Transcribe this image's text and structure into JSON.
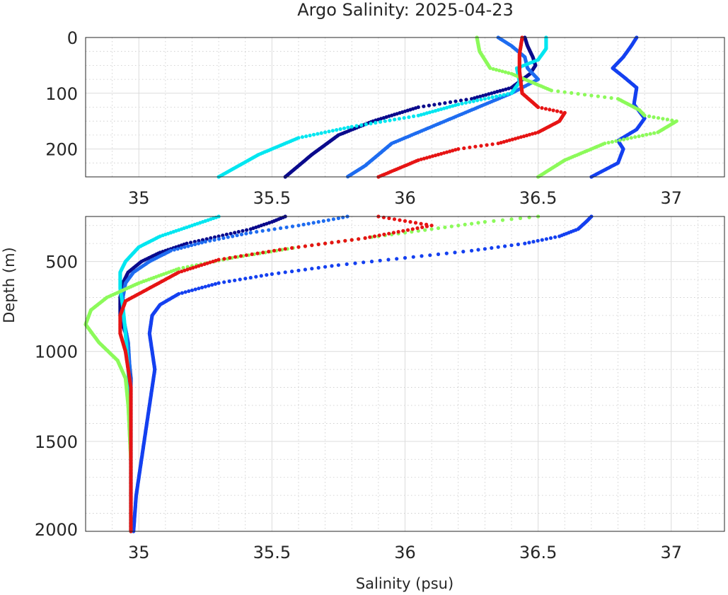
{
  "chart_data": {
    "type": "scatter",
    "title": "Argo Salinity: 2025-04-23",
    "xlabel": "Salinity (psu)",
    "ylabel": "Depth (m)",
    "xlim": [
      34.8,
      37.2
    ],
    "xticks": [
      35,
      35.5,
      36,
      36.5,
      37
    ],
    "xtick_labels": [
      "35",
      "35.5",
      "36",
      "36.5",
      "37"
    ],
    "y_reversed": true,
    "grid": true,
    "panels": [
      {
        "name": "upper",
        "ylim": [
          0,
          250
        ],
        "yticks": [
          0,
          100,
          200
        ],
        "ytick_labels": [
          "0",
          "100",
          "200"
        ],
        "yminor": [
          25,
          50,
          75,
          125,
          150,
          175,
          225
        ]
      },
      {
        "name": "lower",
        "ylim": [
          250,
          2000
        ],
        "yticks": [
          500,
          1000,
          1500,
          2000
        ],
        "ytick_labels": [
          "500",
          "1000",
          "1500",
          "2000"
        ],
        "yminor": [
          300,
          400,
          600,
          700,
          800,
          900,
          1100,
          1200,
          1300,
          1400,
          1600,
          1700,
          1800,
          1900
        ]
      }
    ],
    "series": [
      {
        "name": "navy",
        "color": "#0a0a8c",
        "points": [
          [
            36.45,
            0
          ],
          [
            36.46,
            15
          ],
          [
            36.48,
            35
          ],
          [
            36.49,
            50
          ],
          [
            36.47,
            65
          ],
          [
            36.4,
            90
          ],
          [
            36.25,
            110
          ],
          [
            36.05,
            125
          ],
          [
            35.88,
            150
          ],
          [
            35.75,
            175
          ],
          [
            35.65,
            210
          ],
          [
            35.55,
            250
          ],
          [
            35.5,
            280
          ],
          [
            35.42,
            320
          ],
          [
            35.3,
            360
          ],
          [
            35.18,
            400
          ],
          [
            35.08,
            450
          ],
          [
            35.01,
            500
          ],
          [
            34.96,
            560
          ],
          [
            34.94,
            620
          ],
          [
            34.93,
            700
          ],
          [
            34.93,
            800
          ],
          [
            34.95,
            900
          ],
          [
            34.96,
            1000
          ],
          [
            34.97,
            1150
          ],
          [
            34.97,
            1400
          ],
          [
            34.97,
            1700
          ],
          [
            34.97,
            2000
          ]
        ]
      },
      {
        "name": "blue",
        "color": "#1440f0",
        "points": [
          [
            36.87,
            0
          ],
          [
            36.85,
            15
          ],
          [
            36.82,
            35
          ],
          [
            36.78,
            55
          ],
          [
            36.82,
            70
          ],
          [
            36.87,
            90
          ],
          [
            36.86,
            120
          ],
          [
            36.9,
            145
          ],
          [
            36.87,
            165
          ],
          [
            36.8,
            185
          ],
          [
            36.82,
            200
          ],
          [
            36.8,
            225
          ],
          [
            36.7,
            250
          ],
          [
            36.68,
            280
          ],
          [
            36.65,
            320
          ],
          [
            36.58,
            360
          ],
          [
            36.45,
            400
          ],
          [
            36.25,
            440
          ],
          [
            36.0,
            480
          ],
          [
            35.75,
            520
          ],
          [
            35.5,
            570
          ],
          [
            35.3,
            620
          ],
          [
            35.15,
            680
          ],
          [
            35.08,
            740
          ],
          [
            35.05,
            800
          ],
          [
            35.04,
            900
          ],
          [
            35.05,
            1000
          ],
          [
            35.06,
            1100
          ],
          [
            35.05,
            1200
          ],
          [
            35.03,
            1400
          ],
          [
            35.01,
            1600
          ],
          [
            34.99,
            1800
          ],
          [
            34.98,
            2000
          ]
        ]
      },
      {
        "name": "azure",
        "color": "#1e6cf0",
        "points": [
          [
            36.35,
            0
          ],
          [
            36.4,
            15
          ],
          [
            36.45,
            35
          ],
          [
            36.46,
            55
          ],
          [
            36.5,
            75
          ],
          [
            36.4,
            100
          ],
          [
            36.25,
            130
          ],
          [
            36.1,
            160
          ],
          [
            35.95,
            190
          ],
          [
            35.85,
            230
          ],
          [
            35.75,
            260
          ],
          [
            35.6,
            300
          ],
          [
            35.42,
            340
          ],
          [
            35.25,
            390
          ],
          [
            35.12,
            440
          ],
          [
            35.04,
            500
          ],
          [
            34.98,
            560
          ],
          [
            34.95,
            620
          ],
          [
            34.94,
            700
          ],
          [
            34.94,
            800
          ],
          [
            34.96,
            950
          ],
          [
            34.97,
            1200
          ],
          [
            34.97,
            1600
          ],
          [
            34.97,
            2000
          ]
        ]
      },
      {
        "name": "cyan",
        "color": "#00e6f0",
        "points": [
          [
            36.53,
            0
          ],
          [
            36.53,
            20
          ],
          [
            36.5,
            40
          ],
          [
            36.42,
            55
          ],
          [
            36.43,
            80
          ],
          [
            36.4,
            100
          ],
          [
            36.2,
            120
          ],
          [
            36.05,
            140
          ],
          [
            35.8,
            160
          ],
          [
            35.6,
            180
          ],
          [
            35.45,
            210
          ],
          [
            35.3,
            250
          ],
          [
            35.2,
            300
          ],
          [
            35.08,
            360
          ],
          [
            35.0,
            420
          ],
          [
            34.95,
            500
          ],
          [
            34.93,
            560
          ],
          [
            34.93,
            650
          ],
          [
            34.94,
            750
          ],
          [
            34.95,
            900
          ],
          [
            34.96,
            1100
          ],
          [
            34.97,
            1400
          ],
          [
            34.97,
            2000
          ]
        ]
      },
      {
        "name": "lime",
        "color": "#8cfa5a",
        "points": [
          [
            36.27,
            0
          ],
          [
            36.28,
            25
          ],
          [
            36.32,
            55
          ],
          [
            36.4,
            65
          ],
          [
            36.55,
            95
          ],
          [
            36.8,
            110
          ],
          [
            36.88,
            130
          ],
          [
            36.9,
            140
          ],
          [
            37.02,
            150
          ],
          [
            36.95,
            170
          ],
          [
            36.75,
            190
          ],
          [
            36.6,
            220
          ],
          [
            36.5,
            250
          ],
          [
            36.3,
            280
          ],
          [
            36.1,
            320
          ],
          [
            35.85,
            370
          ],
          [
            35.6,
            420
          ],
          [
            35.35,
            480
          ],
          [
            35.15,
            540
          ],
          [
            35.0,
            620
          ],
          [
            34.88,
            700
          ],
          [
            34.82,
            770
          ],
          [
            34.8,
            850
          ],
          [
            34.85,
            950
          ],
          [
            34.92,
            1050
          ],
          [
            34.95,
            1150
          ],
          [
            34.96,
            1300
          ],
          [
            34.97,
            1600
          ],
          [
            34.97,
            2000
          ]
        ]
      },
      {
        "name": "red",
        "color": "#e61414",
        "points": [
          [
            36.44,
            0
          ],
          [
            36.43,
            30
          ],
          [
            36.43,
            60
          ],
          [
            36.44,
            100
          ],
          [
            36.5,
            125
          ],
          [
            36.6,
            135
          ],
          [
            36.58,
            150
          ],
          [
            36.5,
            170
          ],
          [
            36.35,
            190
          ],
          [
            36.2,
            200
          ],
          [
            36.05,
            220
          ],
          [
            35.9,
            250
          ],
          [
            36.1,
            300
          ],
          [
            35.85,
            370
          ],
          [
            35.55,
            430
          ],
          [
            35.3,
            490
          ],
          [
            35.15,
            560
          ],
          [
            35.05,
            640
          ],
          [
            34.95,
            720
          ],
          [
            34.93,
            800
          ],
          [
            34.93,
            900
          ],
          [
            34.95,
            1000
          ],
          [
            34.97,
            1200
          ],
          [
            34.97,
            1500
          ],
          [
            34.97,
            2000
          ]
        ]
      }
    ]
  }
}
